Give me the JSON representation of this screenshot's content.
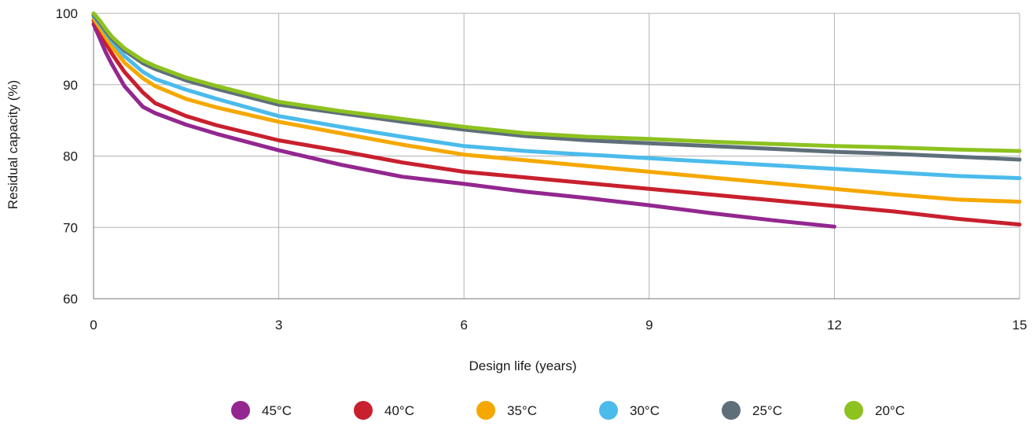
{
  "chart_data": {
    "type": "line",
    "title": "",
    "xlabel": "Design life (years)",
    "ylabel": "Residual capacity (%)",
    "xlim": [
      0,
      15
    ],
    "ylim": [
      60,
      100
    ],
    "x_ticks": [
      0,
      3,
      6,
      9,
      12,
      15
    ],
    "y_ticks": [
      60,
      70,
      80,
      90,
      100
    ],
    "grid": true,
    "legend_position": "bottom-center",
    "series": [
      {
        "name": "45°C",
        "color": "#93278f",
        "x": [
          0,
          0.1,
          0.2,
          0.3,
          0.5,
          0.8,
          1,
          1.5,
          2,
          3,
          4,
          5,
          6,
          7,
          8,
          9,
          10,
          11,
          12
        ],
        "y": [
          98.5,
          96.5,
          94.5,
          92.8,
          89.8,
          86.9,
          86.0,
          84.4,
          83.1,
          80.8,
          78.8,
          77.1,
          76.1,
          75.0,
          74.1,
          73.1,
          72.0,
          71.0,
          70.1
        ]
      },
      {
        "name": "40°C",
        "color": "#c8202e",
        "x": [
          0,
          0.1,
          0.2,
          0.3,
          0.5,
          0.8,
          1,
          1.5,
          2,
          3,
          4,
          5,
          6,
          7,
          8,
          9,
          10,
          11,
          12,
          13,
          14,
          15
        ],
        "y": [
          99,
          97.6,
          95.8,
          94.3,
          91.8,
          88.9,
          87.4,
          85.6,
          84.3,
          82.2,
          80.7,
          79.1,
          77.8,
          77.0,
          76.2,
          75.4,
          74.6,
          73.8,
          73.0,
          72.2,
          71.2,
          70.4
        ]
      },
      {
        "name": "35°C",
        "color": "#f5a800",
        "x": [
          0,
          0.1,
          0.2,
          0.3,
          0.5,
          0.8,
          1,
          1.5,
          2,
          3,
          4,
          5,
          6,
          7,
          8,
          9,
          10,
          11,
          12,
          13,
          14,
          15
        ],
        "y": [
          99.3,
          98.0,
          96.6,
          95.3,
          93.1,
          90.9,
          89.8,
          88.0,
          86.8,
          84.8,
          83.2,
          81.6,
          80.2,
          79.4,
          78.6,
          77.8,
          77.0,
          76.2,
          75.4,
          74.6,
          73.9,
          73.6
        ]
      },
      {
        "name": "30°C",
        "color": "#4bbbeb",
        "x": [
          0,
          0.1,
          0.2,
          0.3,
          0.5,
          0.8,
          1,
          1.5,
          2,
          3,
          4,
          5,
          6,
          7,
          8,
          9,
          10,
          11,
          12,
          13,
          14,
          15
        ],
        "y": [
          99.6,
          98.5,
          97.3,
          96.1,
          94.0,
          91.8,
          90.8,
          89.3,
          88.0,
          85.6,
          84.1,
          82.7,
          81.4,
          80.7,
          80.2,
          79.7,
          79.2,
          78.7,
          78.2,
          77.7,
          77.2,
          76.9
        ]
      },
      {
        "name": "25°C",
        "color": "#5e6f7a",
        "x": [
          0,
          0.1,
          0.2,
          0.3,
          0.5,
          0.8,
          1,
          1.5,
          2,
          3,
          4,
          5,
          6,
          7,
          8,
          9,
          10,
          11,
          12,
          13,
          14,
          15
        ],
        "y": [
          99.8,
          98.7,
          97.5,
          96.4,
          94.8,
          93.0,
          92.2,
          90.6,
          89.4,
          87.2,
          86.0,
          84.8,
          83.7,
          82.8,
          82.2,
          81.8,
          81.4,
          81.0,
          80.6,
          80.3,
          79.9,
          79.5
        ]
      },
      {
        "name": "20°C",
        "color": "#8dc21f",
        "x": [
          0,
          0.1,
          0.2,
          0.3,
          0.5,
          0.8,
          1,
          1.5,
          2,
          3,
          4,
          5,
          6,
          7,
          8,
          9,
          10,
          11,
          12,
          13,
          14,
          15
        ],
        "y": [
          100,
          99.0,
          97.8,
          96.7,
          95.1,
          93.4,
          92.6,
          91.0,
          89.8,
          87.6,
          86.3,
          85.2,
          84.1,
          83.2,
          82.7,
          82.4,
          82.0,
          81.7,
          81.4,
          81.2,
          80.9,
          80.7
        ]
      }
    ]
  }
}
